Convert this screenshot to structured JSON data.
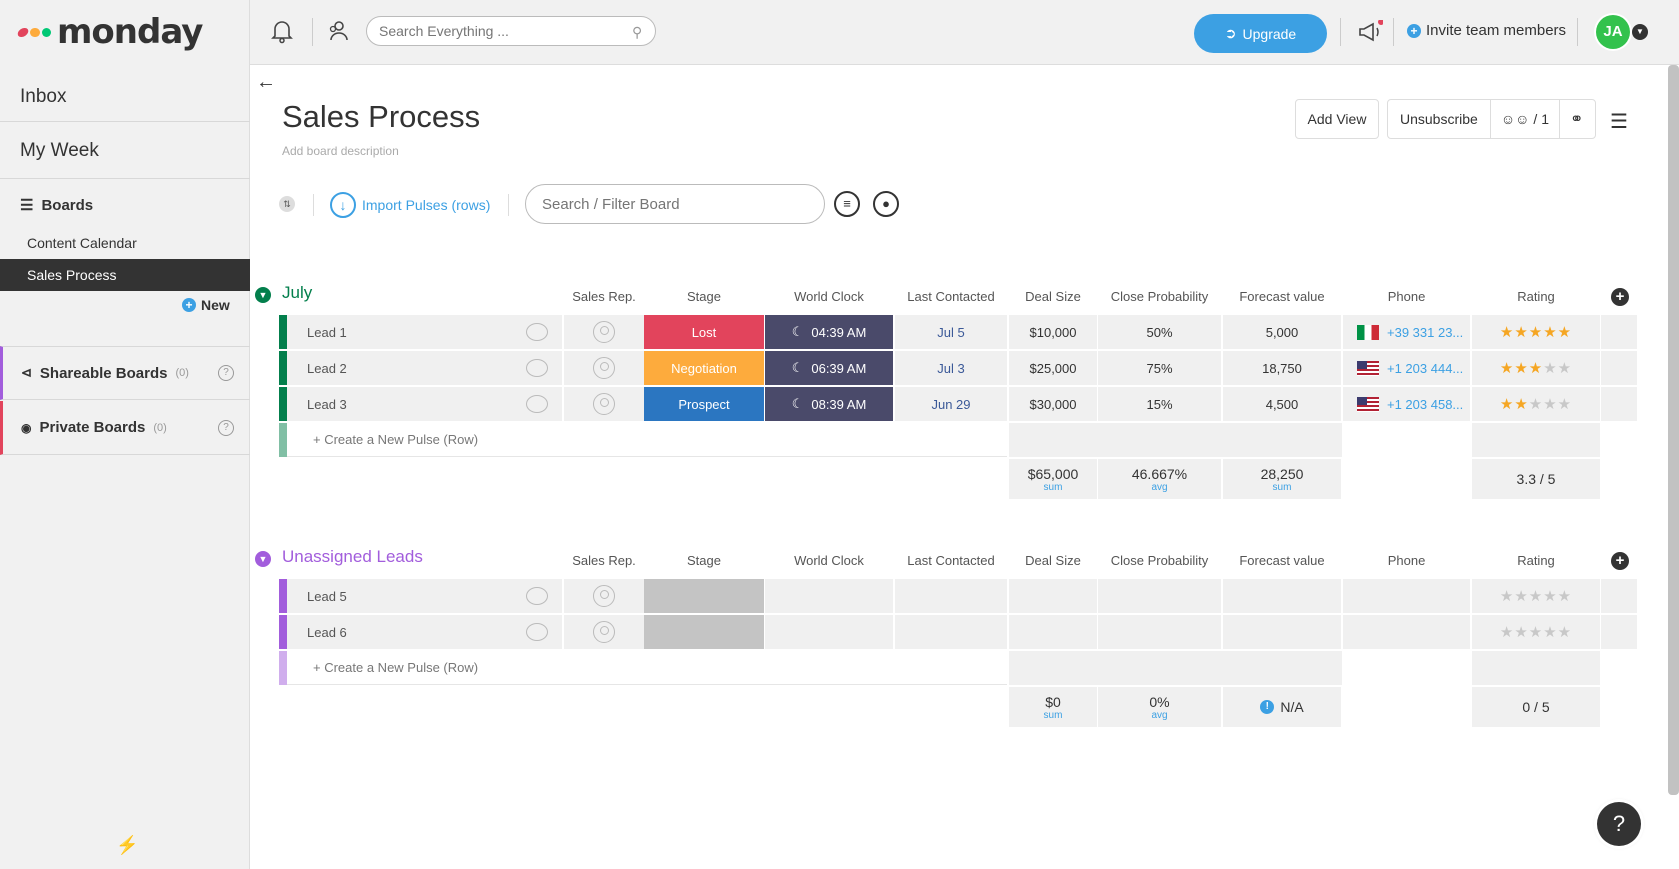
{
  "brand": {
    "name": "monday",
    "dot_colors": [
      "#e2445c",
      "#fdab3d",
      "#00c875"
    ]
  },
  "sidebar": {
    "inbox": "Inbox",
    "my_week": "My Week",
    "boards_label": "Boards",
    "boards": [
      {
        "label": "Content Calendar",
        "active": false
      },
      {
        "label": "Sales Process",
        "active": true
      }
    ],
    "new_label": "New",
    "shareable": {
      "label": "Shareable Boards",
      "count": "(0)",
      "help": "?"
    },
    "private": {
      "label": "Private Boards",
      "count": "(0)",
      "help": "?"
    }
  },
  "topbar": {
    "search_placeholder": "Search Everything ...",
    "upgrade_label": "Upgrade",
    "invite_label": "Invite team members",
    "avatar_initials": "JA"
  },
  "board": {
    "title": "Sales Process",
    "description": "Add board description",
    "add_view": "Add View",
    "unsubscribe": "Unsubscribe",
    "members": "/ 1",
    "import_label": "Import Pulses (rows)",
    "filter_placeholder": "Search / Filter Board"
  },
  "columns": [
    "Sales Rep.",
    "Stage",
    "World Clock",
    "Last Contacted",
    "Deal Size",
    "Close Probability",
    "Forecast value",
    "Phone",
    "Rating"
  ],
  "groups": [
    {
      "name": "July",
      "color": "#037f4c",
      "rows": [
        {
          "name": "Lead 1",
          "stage": "Lost",
          "stage_color": "#e2445c",
          "clock": "04:39 AM",
          "last": "Jul 5",
          "deal": "$10,000",
          "prob": "50%",
          "forecast": "5,000",
          "phone": "+39 331 23...",
          "flag": "it",
          "rating": 5
        },
        {
          "name": "Lead 2",
          "stage": "Negotiation",
          "stage_color": "#fdab3d",
          "clock": "06:39 AM",
          "last": "Jul 3",
          "deal": "$25,000",
          "prob": "75%",
          "forecast": "18,750",
          "phone": "+1 203 444...",
          "flag": "us",
          "rating": 3
        },
        {
          "name": "Lead 3",
          "stage": "Prospect",
          "stage_color": "#2b76c1",
          "clock": "08:39 AM",
          "last": "Jun 29",
          "deal": "$30,000",
          "prob": "15%",
          "forecast": "4,500",
          "phone": "+1 203 458...",
          "flag": "us",
          "rating": 2
        }
      ],
      "create_label": "+ Create a New Pulse (Row)",
      "summary": {
        "deal": "$65,000",
        "deal_l": "sum",
        "prob": "46.667%",
        "prob_l": "avg",
        "forecast": "28,250",
        "forecast_l": "sum",
        "rating": "3.3 / 5"
      }
    },
    {
      "name": "Unassigned Leads",
      "color": "#a25ddc",
      "rows": [
        {
          "name": "Lead 5",
          "stage": "",
          "stage_color": "#c4c4c4",
          "clock": "",
          "last": "",
          "deal": "",
          "prob": "",
          "forecast": "",
          "phone": "",
          "flag": "",
          "rating": 0
        },
        {
          "name": "Lead 6",
          "stage": "",
          "stage_color": "#c4c4c4",
          "clock": "",
          "last": "",
          "deal": "",
          "prob": "",
          "forecast": "",
          "phone": "",
          "flag": "",
          "rating": 0
        }
      ],
      "create_label": "+ Create a New Pulse (Row)",
      "summary": {
        "deal": "$0",
        "deal_l": "sum",
        "prob": "0%",
        "prob_l": "avg",
        "forecast": "N/A",
        "forecast_l": "",
        "rating": "0 / 5"
      }
    }
  ],
  "help_label": "?"
}
